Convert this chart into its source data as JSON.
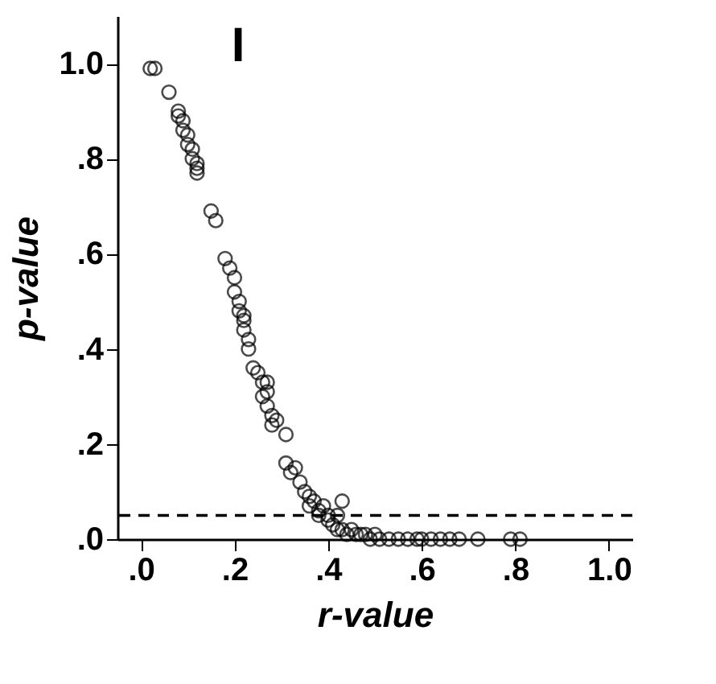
{
  "chart_data": {
    "type": "scatter",
    "xlabel": "r-value",
    "ylabel": "p-value",
    "annotations": [
      "I"
    ],
    "xlim": [
      -0.05,
      1.05
    ],
    "ylim": [
      0,
      1.1
    ],
    "xticks": [
      {
        "value": 0,
        "label": ".0"
      },
      {
        "value": 0.2,
        "label": ".2"
      },
      {
        "value": 0.4,
        "label": ".4"
      },
      {
        "value": 0.6,
        "label": ".6"
      },
      {
        "value": 0.8,
        "label": ".8"
      },
      {
        "value": 1.0,
        "label": "1.0"
      }
    ],
    "yticks": [
      {
        "value": 0,
        "label": ".0"
      },
      {
        "value": 0.2,
        "label": ".2"
      },
      {
        "value": 0.4,
        "label": ".4"
      },
      {
        "value": 0.6,
        "label": ".6"
      },
      {
        "value": 0.8,
        "label": ".8"
      },
      {
        "value": 1.0,
        "label": "1.0"
      }
    ],
    "ref_lines": [
      {
        "axis": "y",
        "value": 0.05,
        "label": null,
        "color": "#000000",
        "line_style": "dashed"
      }
    ],
    "grid": false,
    "series": [
      {
        "color": "#000000",
        "x": [
          0.02,
          0.03,
          0.06,
          0.08,
          0.08,
          0.09,
          0.09,
          0.1,
          0.1,
          0.11,
          0.11,
          0.12,
          0.12,
          0.12,
          0.15,
          0.16,
          0.18,
          0.19,
          0.2,
          0.2,
          0.21,
          0.21,
          0.22,
          0.22,
          0.22,
          0.23,
          0.23,
          0.24,
          0.25,
          0.26,
          0.27,
          0.27,
          0.26,
          0.27,
          0.28,
          0.28,
          0.29,
          0.31,
          0.31,
          0.32,
          0.33,
          0.34,
          0.35,
          0.36,
          0.36,
          0.37,
          0.38,
          0.38,
          0.39,
          0.4,
          0.4,
          0.41,
          0.42,
          0.42,
          0.43,
          0.43,
          0.44,
          0.45,
          0.46,
          0.47,
          0.48,
          0.49,
          0.5,
          0.51,
          0.53,
          0.55,
          0.57,
          0.59,
          0.6,
          0.62,
          0.64,
          0.66,
          0.68,
          0.72,
          0.79,
          0.81
        ],
        "values": [
          0.99,
          0.99,
          0.94,
          0.9,
          0.89,
          0.88,
          0.86,
          0.85,
          0.83,
          0.82,
          0.8,
          0.79,
          0.77,
          0.78,
          0.69,
          0.67,
          0.59,
          0.57,
          0.55,
          0.52,
          0.5,
          0.48,
          0.47,
          0.46,
          0.44,
          0.42,
          0.4,
          0.36,
          0.35,
          0.33,
          0.33,
          0.31,
          0.3,
          0.28,
          0.26,
          0.24,
          0.25,
          0.22,
          0.16,
          0.14,
          0.15,
          0.12,
          0.1,
          0.09,
          0.07,
          0.08,
          0.06,
          0.05,
          0.07,
          0.05,
          0.04,
          0.03,
          0.02,
          0.05,
          0.08,
          0.02,
          0.01,
          0.02,
          0.01,
          0.01,
          0.01,
          0.0,
          0.01,
          0.0,
          0.0,
          0.0,
          0.0,
          0.0,
          0.0,
          0.0,
          0.0,
          0.0,
          0.0,
          0.0,
          0.0,
          0.0
        ]
      }
    ]
  }
}
